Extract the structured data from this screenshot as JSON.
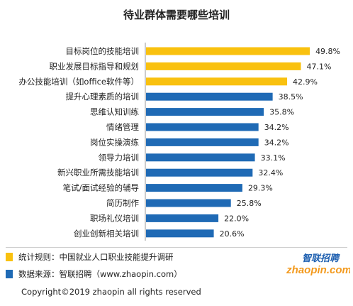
{
  "colors": {
    "highlight": "#F9C10F",
    "normal": "#1F6AB5",
    "logo_blue": "#1D5FB0",
    "logo_orange": "#F39A1E"
  },
  "footer": {
    "note_1": "统计规则：中国就业人口职业技能提升调研",
    "note_2": "数据来源：智联招聘（www.zhaopin.com）",
    "copyright": "Copyright©2019 zhaopin all rights reserved",
    "logo_cn": "智联招聘",
    "logo_en": "zhaopin.com"
  },
  "chart_data": {
    "type": "bar",
    "orientation": "horizontal",
    "title": "待业群体需要哪些培训",
    "xlabel": "",
    "ylabel": "",
    "xlim": [
      0,
      50
    ],
    "grid": false,
    "unit": "%",
    "categories": [
      "目标岗位的技能培训",
      "职业发展目标指导和规划",
      "办公技能培训（如office软件等）",
      "提升心理素质的培训",
      "思维认知训练",
      "情绪管理",
      "岗位实操演练",
      "领导力培训",
      "新兴职业所需技能培训",
      "笔试/面试经验的辅导",
      "简历制作",
      "职场礼仪培训",
      "创业创新相关培训"
    ],
    "values": [
      49.8,
      47.1,
      42.9,
      38.5,
      35.8,
      34.2,
      34.2,
      33.1,
      32.4,
      29.3,
      25.8,
      22.0,
      20.6
    ],
    "value_labels": [
      "49.8%",
      "47.1%",
      "42.9%",
      "38.5%",
      "35.8%",
      "34.2%",
      "34.2%",
      "33.1%",
      "32.4%",
      "29.3%",
      "25.8%",
      "22.0%",
      "20.6%"
    ],
    "highlighted": [
      true,
      true,
      true,
      false,
      false,
      false,
      false,
      false,
      false,
      false,
      false,
      false,
      false
    ]
  }
}
